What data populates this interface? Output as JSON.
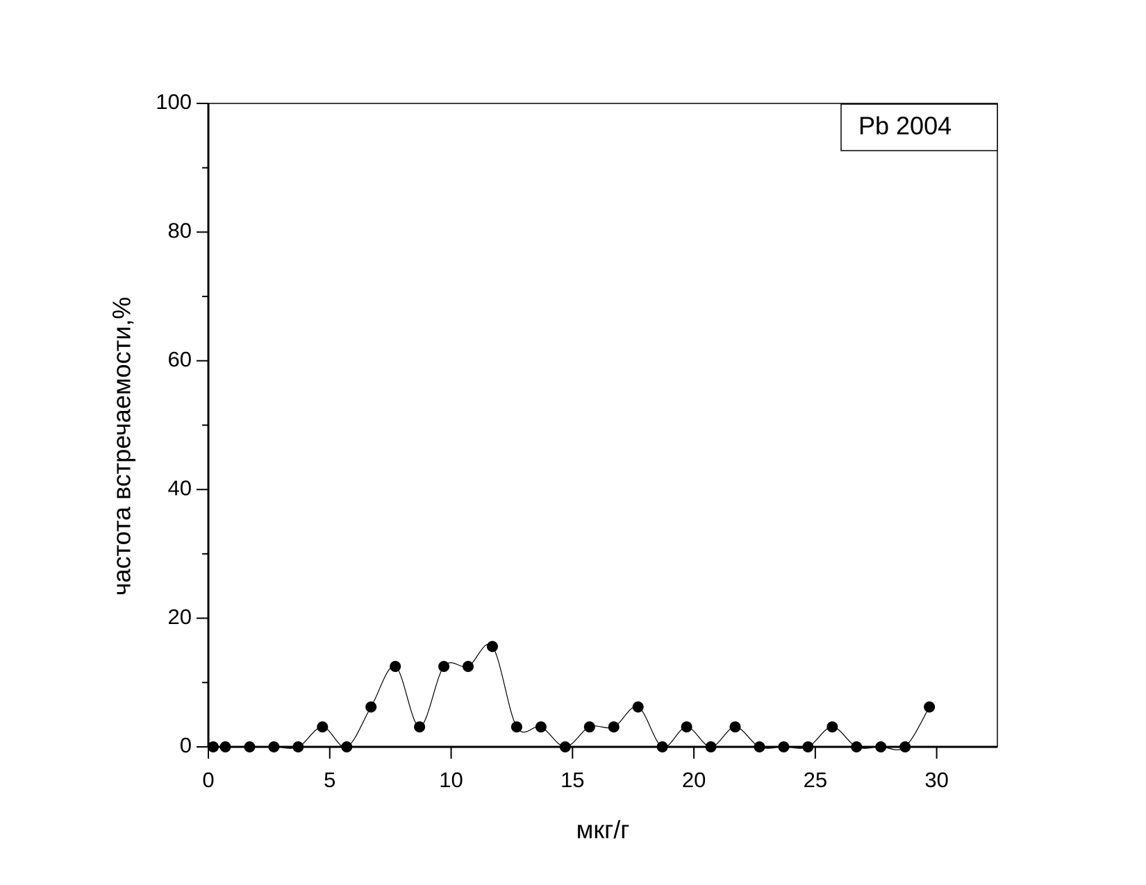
{
  "chart_data": {
    "type": "line",
    "x_label": "мкг/г",
    "y_label": "частота встречаемости,%",
    "x": [
      0.2,
      0.7,
      1.7,
      2.7,
      3.7,
      4.7,
      5.7,
      6.7,
      7.7,
      8.7,
      9.7,
      10.7,
      11.7,
      12.7,
      13.7,
      14.7,
      15.7,
      16.7,
      17.7,
      18.7,
      19.7,
      20.7,
      21.7,
      22.7,
      23.7,
      24.7,
      25.7,
      26.7,
      27.7,
      28.7,
      29.7
    ],
    "series": [
      {
        "name": "Pb 2004",
        "color": "#000000",
        "values": [
          0,
          0,
          0,
          0,
          0,
          3.1,
          0,
          6.2,
          12.5,
          3.1,
          12.5,
          12.5,
          15.6,
          3.1,
          3.1,
          0,
          3.1,
          3.1,
          6.2,
          0,
          3.1,
          0,
          3.1,
          0,
          0,
          0,
          3.1,
          0,
          0,
          0,
          6.2
        ]
      }
    ],
    "xlim": [
      0,
      32.5
    ],
    "ylim": [
      0,
      100
    ],
    "xticks": [
      0,
      5,
      10,
      15,
      20,
      25,
      30
    ],
    "yticks": [
      0,
      20,
      40,
      60,
      80,
      100
    ],
    "yticks_minor": [
      10,
      30,
      50,
      70,
      90
    ],
    "smooth": true,
    "legend": "top-right"
  }
}
